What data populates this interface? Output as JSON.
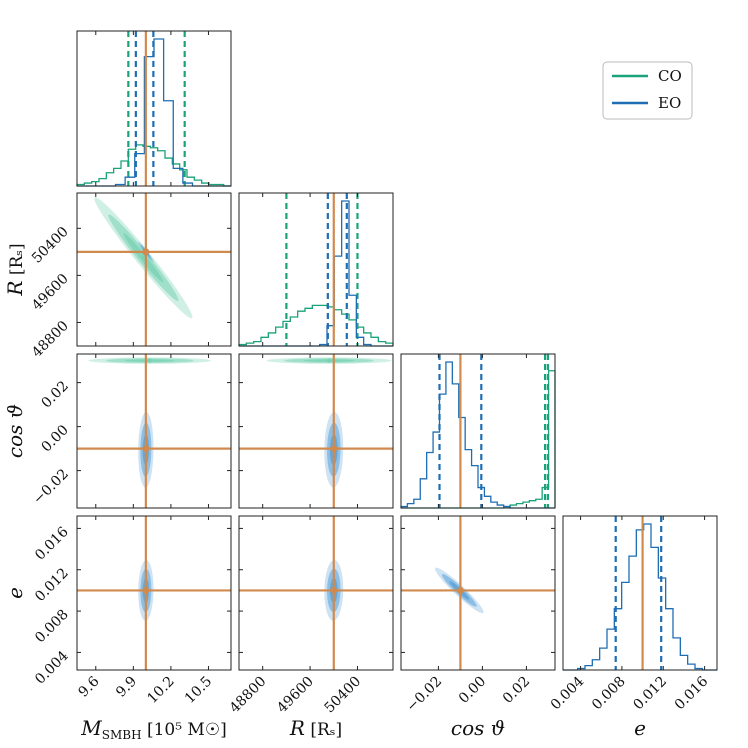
{
  "chart_data": {
    "type": "corner",
    "colors": {
      "CO": "#1aa37a",
      "EO": "#1f6eb3",
      "truth": "#d08a4e",
      "co_fill": "#79d2b4",
      "eo_fill": "#5aa0d6"
    },
    "legend": {
      "placement": "top-right",
      "entries": [
        "CO",
        "EO"
      ]
    },
    "parameters": [
      {
        "key": "M",
        "label": "M",
        "sub": "SMBH",
        "unit": "[10⁵ M☉]",
        "range": [
          9.45,
          10.68
        ],
        "truth": 10.0,
        "ticks": [
          9.6,
          9.9,
          10.2,
          10.5
        ],
        "tick_labels": [
          "9.6",
          "9.9",
          "10.2",
          "10.5"
        ]
      },
      {
        "key": "R",
        "label": "R",
        "sub": "",
        "unit": "[Rₛ]",
        "range": [
          48400,
          51000
        ],
        "truth": 50000,
        "ticks": [
          48800,
          49600,
          50400
        ],
        "tick_labels": [
          "48800",
          "49600",
          "50400"
        ]
      },
      {
        "key": "cos",
        "label": "cos ϑ",
        "sub": "",
        "unit": "",
        "range": [
          -0.037,
          0.033
        ],
        "truth": -0.01,
        "ticks": [
          -0.02,
          0.0,
          0.02
        ],
        "tick_labels": [
          "−0.02",
          "0.00",
          "0.02"
        ]
      },
      {
        "key": "e",
        "label": "e",
        "sub": "",
        "unit": "",
        "range": [
          0.0023,
          0.0172
        ],
        "truth": 0.01,
        "ticks": [
          0.004,
          0.008,
          0.012,
          0.016
        ],
        "tick_labels": [
          "0.004",
          "0.008",
          "0.012",
          "0.016"
        ]
      }
    ],
    "hist_1d": [
      {
        "param": "M",
        "EO": {
          "counts": [
            0,
            0,
            0,
            0,
            1,
            6,
            22,
            88,
            100,
            58,
            12,
            2,
            0,
            0,
            0,
            0
          ],
          "quantiles": [
            9.92,
            10.06
          ]
        },
        "CO": {
          "counts": [
            1,
            2,
            3,
            5,
            9,
            12,
            17,
            25,
            28,
            27,
            26,
            24,
            19,
            15,
            11,
            6,
            4,
            2,
            1,
            1,
            0
          ],
          "quantiles": [
            9.86,
            10.31
          ]
        }
      },
      {
        "param": "R",
        "EO": {
          "counts": [
            0,
            0,
            0,
            0,
            0,
            0,
            0,
            0,
            0,
            0,
            0,
            1,
            14,
            62,
            100,
            35,
            6,
            1,
            0,
            0,
            0
          ],
          "quantiles": [
            49900,
            50220
          ]
        },
        "CO": {
          "counts": [
            1,
            2,
            3,
            6,
            9,
            13,
            17,
            20,
            24,
            26,
            28,
            28,
            27,
            25,
            22,
            18,
            13,
            9,
            6,
            3,
            2
          ],
          "quantiles": [
            49200,
            50400
          ]
        }
      },
      {
        "param": "cos",
        "EO": {
          "counts": [
            1,
            3,
            6,
            20,
            38,
            52,
            78,
            100,
            85,
            62,
            40,
            29,
            14,
            8,
            4,
            2,
            1,
            0,
            0,
            0,
            0,
            0,
            0,
            0
          ],
          "quantiles": [
            -0.0195,
            -0.0005
          ]
        },
        "CO": {
          "counts": [
            0,
            0,
            0,
            0,
            0,
            0,
            0,
            0,
            0,
            0,
            0,
            0,
            0,
            0,
            0,
            0,
            1,
            2,
            3,
            4,
            5,
            6,
            14,
            94
          ],
          "quantiles": [
            0.0285,
            0.0298
          ]
        }
      },
      {
        "param": "e",
        "EO": {
          "counts": [
            0,
            0,
            1,
            3,
            7,
            15,
            28,
            42,
            60,
            78,
            96,
            100,
            84,
            63,
            42,
            22,
            10,
            4,
            1,
            0,
            0
          ],
          "quantiles": [
            0.0074,
            0.0118
          ]
        },
        "CO": null
      }
    ],
    "contours_2d": [
      {
        "x": "M",
        "y": "R",
        "CO": {
          "mx": 9.98,
          "my": 49900,
          "sx": 0.16,
          "sy": 420,
          "rho": -0.98
        },
        "EO": {
          "mx": 10.0,
          "my": 50000,
          "sx": 0.025,
          "sy": 70,
          "rho": -0.98
        }
      },
      {
        "x": "M",
        "y": "cos",
        "CO": {
          "mx": 10.03,
          "my": 0.03,
          "sx": 0.2,
          "sy": 0.0006,
          "rho": 0.0
        },
        "EO": {
          "mx": 10.0,
          "my": -0.0105,
          "sx": 0.025,
          "sy": 0.007,
          "rho": 0.05
        }
      },
      {
        "x": "R",
        "y": "cos",
        "CO": {
          "mx": 49920,
          "my": 0.03,
          "sx": 430,
          "sy": 0.0006,
          "rho": 0.0
        },
        "EO": {
          "mx": 50000,
          "my": -0.0105,
          "sx": 65,
          "sy": 0.007,
          "rho": 0.05
        }
      },
      {
        "x": "M",
        "y": "e",
        "CO": null,
        "EO": {
          "mx": 10.0,
          "my": 0.01,
          "sx": 0.025,
          "sy": 0.0012,
          "rho": 0.05
        }
      },
      {
        "x": "R",
        "y": "e",
        "CO": null,
        "EO": {
          "mx": 50000,
          "my": 0.01,
          "sx": 65,
          "sy": 0.0012,
          "rho": 0.05
        }
      },
      {
        "x": "cos",
        "y": "e",
        "CO": null,
        "EO": {
          "mx": -0.0105,
          "my": 0.01,
          "sx": 0.0045,
          "sy": 0.0009,
          "rho": -0.95
        }
      }
    ]
  }
}
